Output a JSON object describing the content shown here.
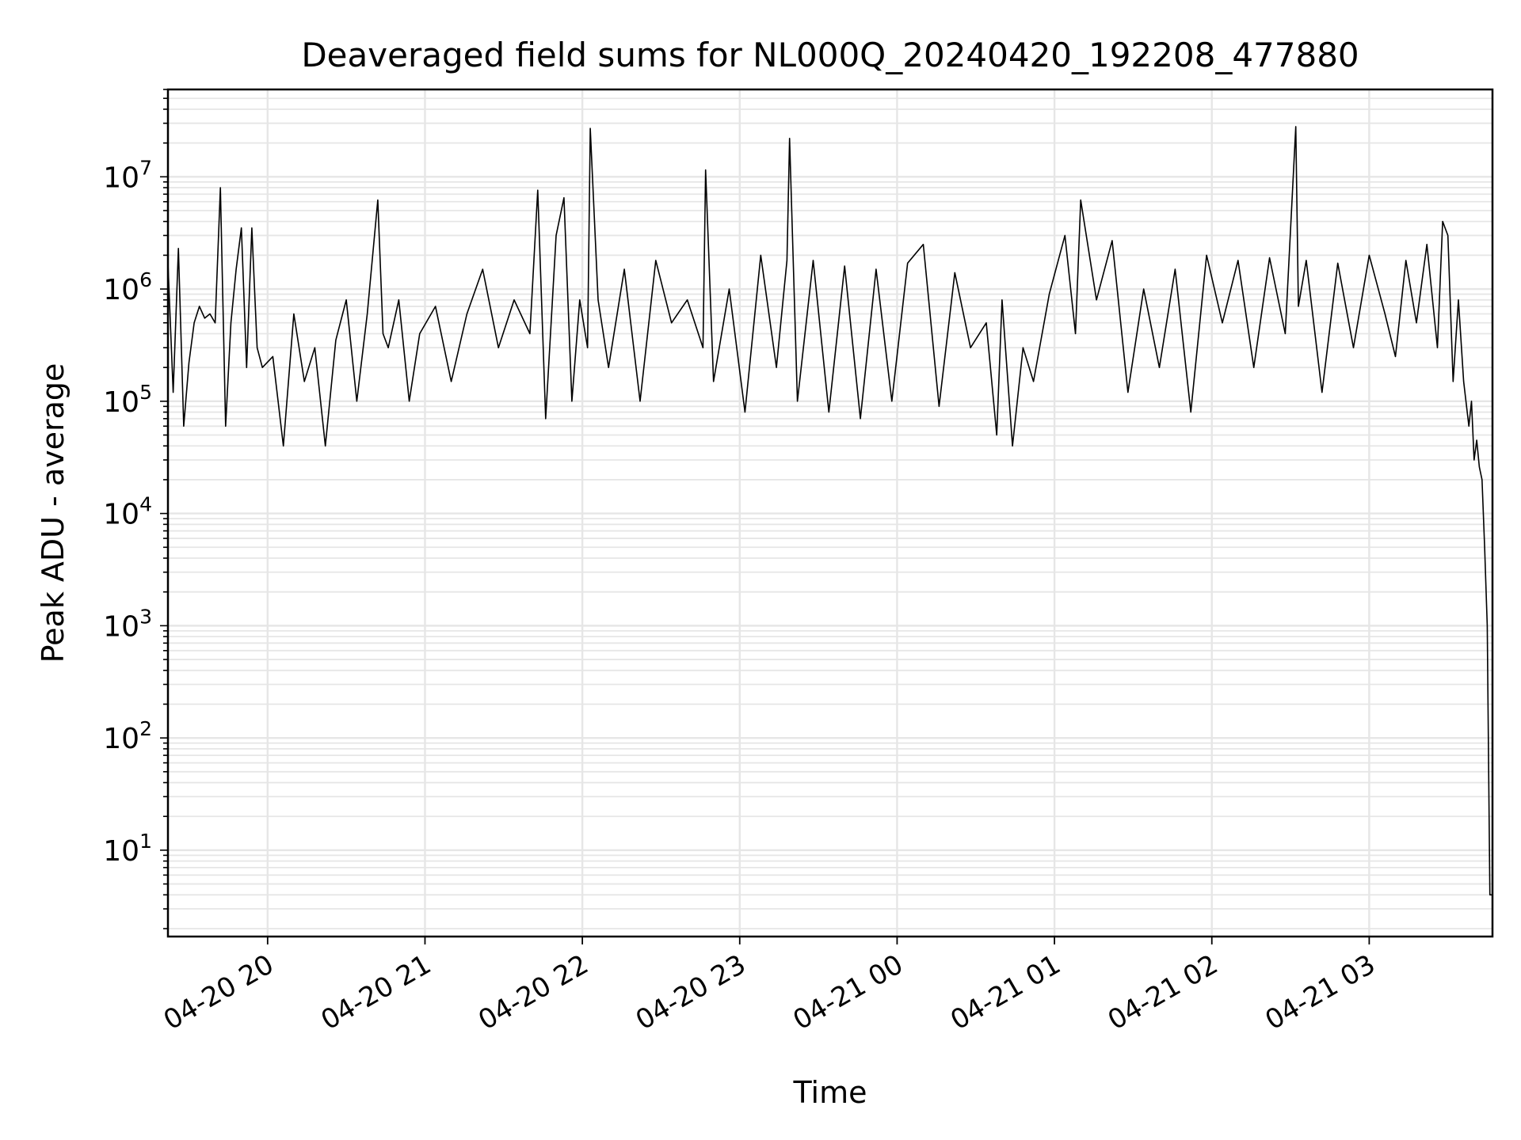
{
  "chart_data": {
    "type": "line",
    "title": "Deaveraged field sums for NL000Q_20240420_192208_477880",
    "xlabel": "Time",
    "ylabel": "Peak ADU - average",
    "y_scale": "log",
    "ylim": [
      1.7,
      60000000
    ],
    "xlim": [
      "2024-04-20 19:22",
      "2024-04-21 03:47"
    ],
    "x_ticks": [
      {
        "value": "2024-04-20 20:00",
        "label": "04-20 20"
      },
      {
        "value": "2024-04-20 21:00",
        "label": "04-20 21"
      },
      {
        "value": "2024-04-20 22:00",
        "label": "04-20 22"
      },
      {
        "value": "2024-04-20 23:00",
        "label": "04-20 23"
      },
      {
        "value": "2024-04-21 00:00",
        "label": "04-21 00"
      },
      {
        "value": "2024-04-21 01:00",
        "label": "04-21 01"
      },
      {
        "value": "2024-04-21 02:00",
        "label": "04-21 02"
      },
      {
        "value": "2024-04-21 03:00",
        "label": "04-21 03"
      }
    ],
    "y_ticks": [
      {
        "value": 10,
        "base": "10",
        "exp": "1"
      },
      {
        "value": 100,
        "base": "10",
        "exp": "2"
      },
      {
        "value": 1000,
        "base": "10",
        "exp": "3"
      },
      {
        "value": 10000,
        "base": "10",
        "exp": "4"
      },
      {
        "value": 100000,
        "base": "10",
        "exp": "5"
      },
      {
        "value": 1000000,
        "base": "10",
        "exp": "6"
      },
      {
        "value": 10000000,
        "base": "10",
        "exp": "7"
      }
    ],
    "grid": true,
    "line_color": "#000000",
    "grid_color": "#e6e6e6",
    "series": [
      {
        "x": [
          "2024-04-20 19:22",
          "2024-04-20 19:24",
          "2024-04-20 19:26",
          "2024-04-20 19:28",
          "2024-04-20 19:30",
          "2024-04-20 19:32",
          "2024-04-20 19:34",
          "2024-04-20 19:36",
          "2024-04-20 19:38",
          "2024-04-20 19:40",
          "2024-04-20 19:42",
          "2024-04-20 19:44",
          "2024-04-20 19:46",
          "2024-04-20 19:48",
          "2024-04-20 19:50",
          "2024-04-20 19:52",
          "2024-04-20 19:54",
          "2024-04-20 19:56",
          "2024-04-20 19:58",
          "2024-04-20 20:02",
          "2024-04-20 20:06",
          "2024-04-20 20:10",
          "2024-04-20 20:14",
          "2024-04-20 20:18",
          "2024-04-20 20:22",
          "2024-04-20 20:26",
          "2024-04-20 20:30",
          "2024-04-20 20:34",
          "2024-04-20 20:38",
          "2024-04-20 20:42",
          "2024-04-20 20:44",
          "2024-04-20 20:46",
          "2024-04-20 20:50",
          "2024-04-20 20:54",
          "2024-04-20 20:58",
          "2024-04-20 21:04",
          "2024-04-20 21:10",
          "2024-04-20 21:16",
          "2024-04-20 21:22",
          "2024-04-20 21:28",
          "2024-04-20 21:34",
          "2024-04-20 21:40",
          "2024-04-20 21:43",
          "2024-04-20 21:46",
          "2024-04-20 21:50",
          "2024-04-20 21:53",
          "2024-04-20 21:56",
          "2024-04-20 21:59",
          "2024-04-20 22:02",
          "2024-04-20 22:03",
          "2024-04-20 22:06",
          "2024-04-20 22:10",
          "2024-04-20 22:16",
          "2024-04-20 22:22",
          "2024-04-20 22:28",
          "2024-04-20 22:34",
          "2024-04-20 22:40",
          "2024-04-20 22:46",
          "2024-04-20 22:47",
          "2024-04-20 22:50",
          "2024-04-20 22:56",
          "2024-04-20 23:02",
          "2024-04-20 23:08",
          "2024-04-20 23:14",
          "2024-04-20 23:18",
          "2024-04-20 23:19",
          "2024-04-20 23:22",
          "2024-04-20 23:28",
          "2024-04-20 23:34",
          "2024-04-20 23:40",
          "2024-04-20 23:46",
          "2024-04-20 23:52",
          "2024-04-20 23:58",
          "2024-04-21 00:04",
          "2024-04-21 00:10",
          "2024-04-21 00:16",
          "2024-04-21 00:22",
          "2024-04-21 00:28",
          "2024-04-21 00:34",
          "2024-04-21 00:38",
          "2024-04-21 00:40",
          "2024-04-21 00:44",
          "2024-04-21 00:48",
          "2024-04-21 00:52",
          "2024-04-21 00:58",
          "2024-04-21 01:04",
          "2024-04-21 01:08",
          "2024-04-21 01:10",
          "2024-04-21 01:16",
          "2024-04-21 01:22",
          "2024-04-21 01:28",
          "2024-04-21 01:34",
          "2024-04-21 01:40",
          "2024-04-21 01:46",
          "2024-04-21 01:52",
          "2024-04-21 01:58",
          "2024-04-21 02:04",
          "2024-04-21 02:10",
          "2024-04-21 02:16",
          "2024-04-21 02:22",
          "2024-04-21 02:28",
          "2024-04-21 02:32",
          "2024-04-21 02:33",
          "2024-04-21 02:36",
          "2024-04-21 02:42",
          "2024-04-21 02:48",
          "2024-04-21 02:54",
          "2024-04-21 03:00",
          "2024-04-21 03:06",
          "2024-04-21 03:10",
          "2024-04-21 03:14",
          "2024-04-21 03:18",
          "2024-04-21 03:22",
          "2024-04-21 03:26",
          "2024-04-21 03:28",
          "2024-04-21 03:30",
          "2024-04-21 03:32",
          "2024-04-21 03:34",
          "2024-04-21 03:36",
          "2024-04-21 03:38",
          "2024-04-21 03:39",
          "2024-04-21 03:40",
          "2024-04-21 03:41",
          "2024-04-21 03:42",
          "2024-04-21 03:43",
          "2024-04-21 03:44",
          "2024-04-21 03:45",
          "2024-04-21 03:46",
          "2024-04-21 03:47"
        ],
        "values": [
          1700000,
          120000,
          2300000,
          60000,
          220000,
          500000,
          700000,
          550000,
          600000,
          500000,
          8000000,
          60000,
          500000,
          1500000,
          3500000,
          200000,
          3500000,
          300000,
          200000,
          250000,
          40000,
          600000,
          150000,
          300000,
          40000,
          350000,
          800000,
          100000,
          600000,
          6200000,
          400000,
          300000,
          800000,
          100000,
          400000,
          700000,
          150000,
          600000,
          1500000,
          300000,
          800000,
          400000,
          7600000,
          70000,
          3000000,
          6500000,
          100000,
          800000,
          300000,
          27000000,
          800000,
          200000,
          1500000,
          100000,
          1800000,
          500000,
          800000,
          300000,
          11500000,
          150000,
          1000000,
          80000,
          2000000,
          200000,
          1800000,
          22000000,
          100000,
          1800000,
          80000,
          1600000,
          70000,
          1500000,
          100000,
          1700000,
          2500000,
          90000,
          1400000,
          300000,
          500000,
          50000,
          800000,
          40000,
          300000,
          150000,
          900000,
          3000000,
          400000,
          6200000,
          800000,
          2700000,
          120000,
          1000000,
          200000,
          1500000,
          80000,
          2000000,
          500000,
          1800000,
          200000,
          1900000,
          400000,
          28000000,
          700000,
          1800000,
          120000,
          1700000,
          300000,
          2000000,
          600000,
          250000,
          1800000,
          500000,
          2500000,
          300000,
          4000000,
          3000000,
          150000,
          800000,
          150000,
          60000,
          100000,
          30000,
          45000,
          26000,
          20000,
          5000,
          1000,
          4,
          4
        ]
      }
    ]
  }
}
